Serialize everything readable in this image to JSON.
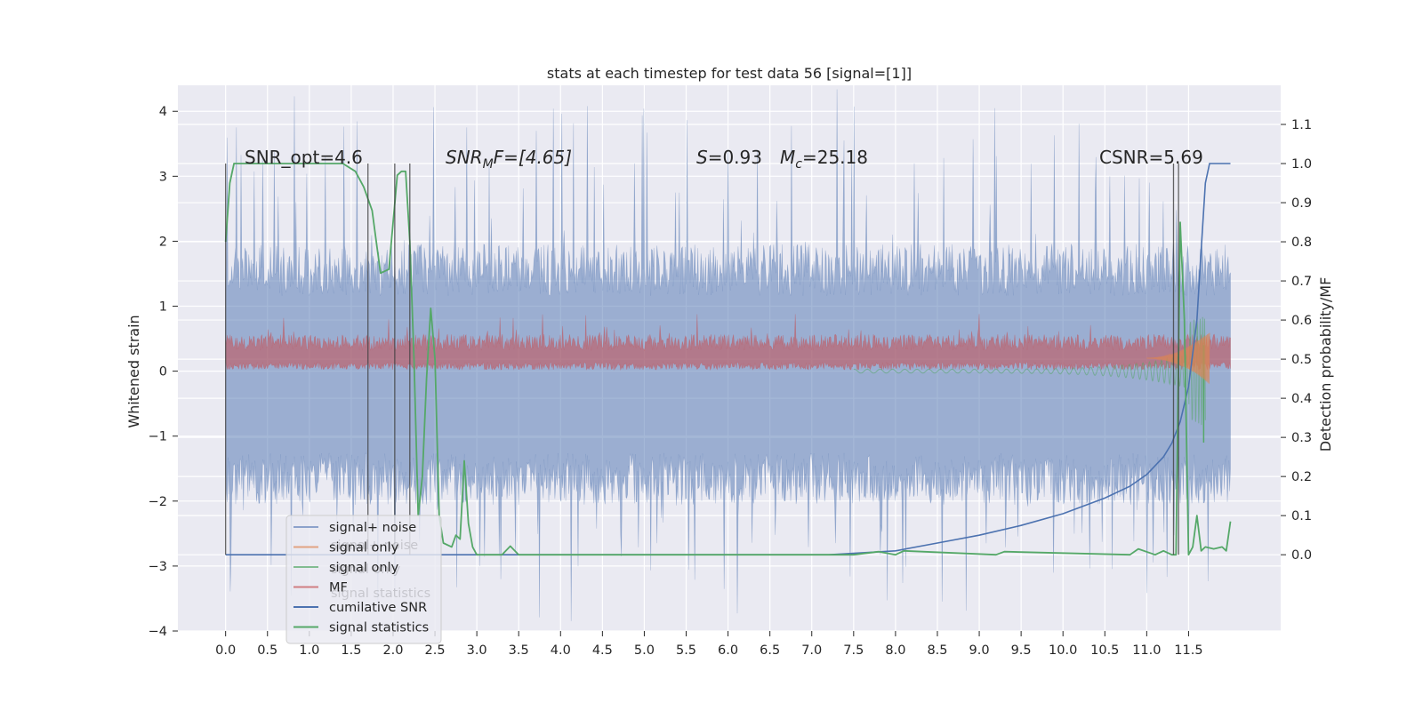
{
  "chart_data": {
    "type": "line",
    "title": "stats at each timestep for test data 56 [signal=[1]]",
    "xlabel": "",
    "ylabel": "Whitened strain",
    "ylabel_right": "Detection probability/MF",
    "xlim": [
      -0.57,
      12.6
    ],
    "ylim": [
      -4.0,
      4.4
    ],
    "ylim_right": [
      -0.195,
      1.2
    ],
    "grid": true,
    "x_ticks": [
      "0.0",
      "0.5",
      "1.0",
      "1.5",
      "2.0",
      "2.5",
      "3.0",
      "3.5",
      "4.0",
      "4.5",
      "5.0",
      "5.5",
      "6.0",
      "6.5",
      "7.0",
      "7.5",
      "8.0",
      "8.5",
      "9.0",
      "9.5",
      "10.0",
      "10.5",
      "11.0",
      "11.5"
    ],
    "y_ticks": [
      "4",
      "3",
      "2",
      "1",
      "0",
      "−1",
      "−2",
      "−3",
      "−4"
    ],
    "y_ticks_right": [
      "1.1",
      "1.0",
      "0.9",
      "0.8",
      "0.7",
      "0.6",
      "0.5",
      "0.4",
      "0.3",
      "0.2",
      "0.1",
      "0.0"
    ],
    "annotations": {
      "snr_opt": "SNR_opt=4.6",
      "snr_mf_base": "SNR",
      "snr_mf_sub": "M",
      "snr_mf_rest": "F=[4.65]",
      "s_italic": "S",
      "s_value": "=0.93",
      "mc_italic": "M",
      "mc_sub": "c",
      "mc_value": "=25.18",
      "csnr": "CSNR=5.69"
    },
    "legend": {
      "placement": "lower-left",
      "entries": [
        "signal+ noise",
        "signal only",
        "signal only",
        "MF",
        "cumilative SNR",
        "signal statistics"
      ],
      "ghost_entries": [
        "signal+ noise",
        "signal only",
        "signal statistics"
      ]
    },
    "series": [
      {
        "name": "signal+ noise",
        "color": "#4c72b0",
        "alpha": 0.5,
        "band": {
          "x_start": 0.0,
          "x_end": 12.0,
          "typical_low": -1.5,
          "typical_high": 1.4,
          "peak_low": -3.7,
          "peak_high": 4.1
        }
      },
      {
        "name": "signal only",
        "color": "#dd8452",
        "chirp": {
          "x_start": 11.0,
          "x_end": 11.75,
          "peak": 0.9
        }
      },
      {
        "name": "signal only",
        "color": "#55a868",
        "chirp": {
          "x_start": 7.5,
          "x_end": 11.7,
          "peak": -1.1
        }
      },
      {
        "name": "MF",
        "color": "#c44e52",
        "band": {
          "x_start": 0.0,
          "x_end": 12.0,
          "low": 0.0,
          "high": 0.6
        }
      },
      {
        "name": "cumilative SNR",
        "color": "#4c72b0",
        "axis": "right",
        "x": [
          0.0,
          3.0,
          7.2,
          8.0,
          8.5,
          9.0,
          9.5,
          10.0,
          10.5,
          10.8,
          11.0,
          11.2,
          11.3,
          11.4,
          11.5,
          11.6,
          11.65,
          11.7,
          11.75,
          12.0
        ],
        "y": [
          0.0,
          0.0,
          0.0,
          0.01,
          0.03,
          0.05,
          0.075,
          0.105,
          0.145,
          0.175,
          0.205,
          0.25,
          0.285,
          0.34,
          0.43,
          0.6,
          0.78,
          0.95,
          1.0,
          1.0
        ]
      },
      {
        "name": "signal statistics",
        "color": "#55a868",
        "axis": "right",
        "x": [
          0.0,
          0.05,
          0.1,
          0.3,
          0.6,
          1.0,
          1.4,
          1.55,
          1.65,
          1.75,
          1.8,
          1.85,
          1.95,
          2.0,
          2.05,
          2.1,
          2.15,
          2.2,
          2.25,
          2.3,
          2.35,
          2.4,
          2.45,
          2.5,
          2.55,
          2.6,
          2.7,
          2.75,
          2.8,
          2.85,
          2.9,
          2.95,
          3.0,
          3.3,
          3.4,
          3.5,
          7.5,
          7.8,
          8.0,
          8.1,
          9.2,
          9.3,
          10.8,
          10.9,
          11.1,
          11.2,
          11.3,
          11.35,
          11.4,
          11.45,
          11.5,
          11.55,
          11.6,
          11.65,
          11.7,
          11.8,
          11.9,
          11.95,
          12.0
        ],
        "y": [
          0.8,
          0.95,
          1.0,
          1.0,
          1.0,
          1.0,
          1.0,
          0.98,
          0.94,
          0.88,
          0.8,
          0.72,
          0.73,
          0.85,
          0.97,
          0.98,
          0.98,
          0.8,
          0.5,
          0.1,
          0.2,
          0.45,
          0.63,
          0.5,
          0.1,
          0.03,
          0.02,
          0.05,
          0.04,
          0.24,
          0.08,
          0.02,
          0.0,
          0.0,
          0.022,
          0.0,
          0.0,
          0.008,
          0.0,
          0.01,
          0.0,
          0.008,
          0.0,
          0.015,
          0.0,
          0.01,
          0.0,
          0.0,
          0.85,
          0.6,
          0.0,
          0.02,
          0.1,
          0.01,
          0.02,
          0.015,
          0.02,
          0.01,
          0.085
        ]
      }
    ],
    "vertical_markers": [
      0.0,
      1.7,
      2.02,
      2.2,
      11.32,
      11.38
    ]
  }
}
